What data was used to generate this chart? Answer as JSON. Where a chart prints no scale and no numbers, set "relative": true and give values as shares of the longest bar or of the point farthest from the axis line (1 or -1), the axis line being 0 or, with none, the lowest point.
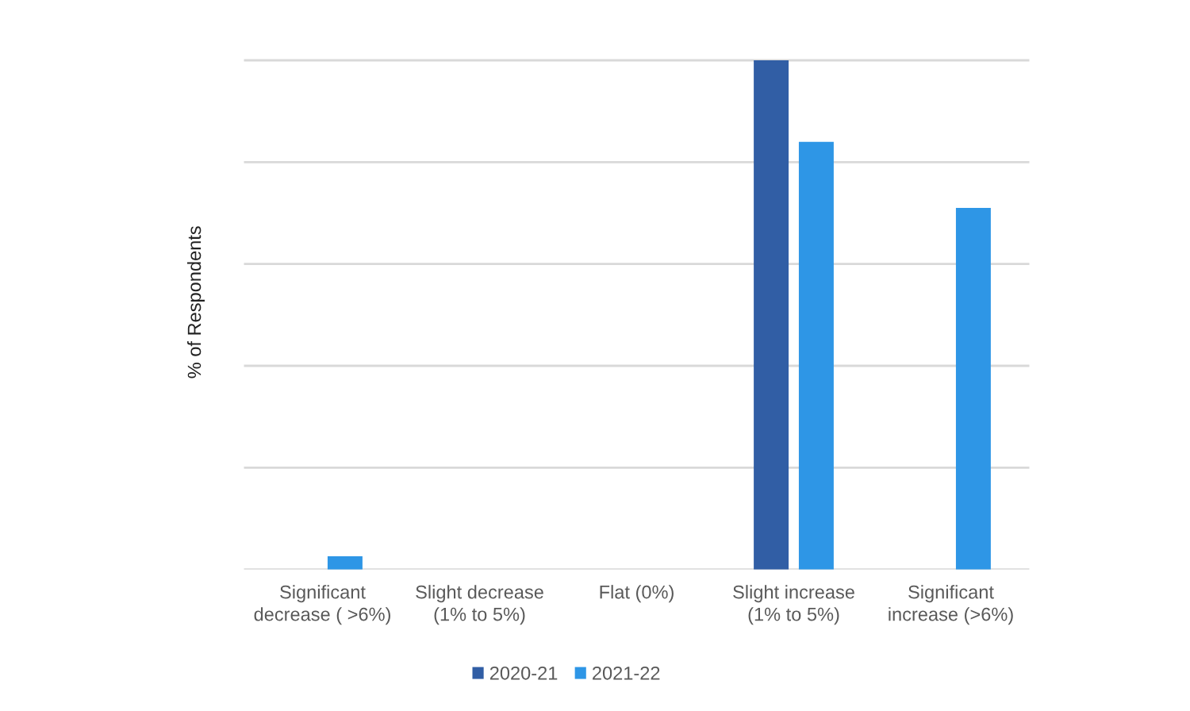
{
  "chart_data": {
    "type": "bar",
    "ylabel": "% of Respondents",
    "categories": [
      "Significant\ndecrease ( >6%)",
      "Slight decrease\n(1% to 5%)",
      "Flat (0%)",
      "Slight increase\n(1% to 5%)",
      "Significant\nincrease (>6%)"
    ],
    "series": [
      {
        "name": "2020-21",
        "color": "#315ea5",
        "values": [
          null,
          null,
          null,
          1,
          null
        ]
      },
      {
        "name": "2021-22",
        "color": "#2e96e6",
        "values": [
          0.026,
          null,
          null,
          0.84,
          0.71
        ]
      }
    ],
    "relative": true,
    "grid": "y",
    "legend": "bottom"
  }
}
